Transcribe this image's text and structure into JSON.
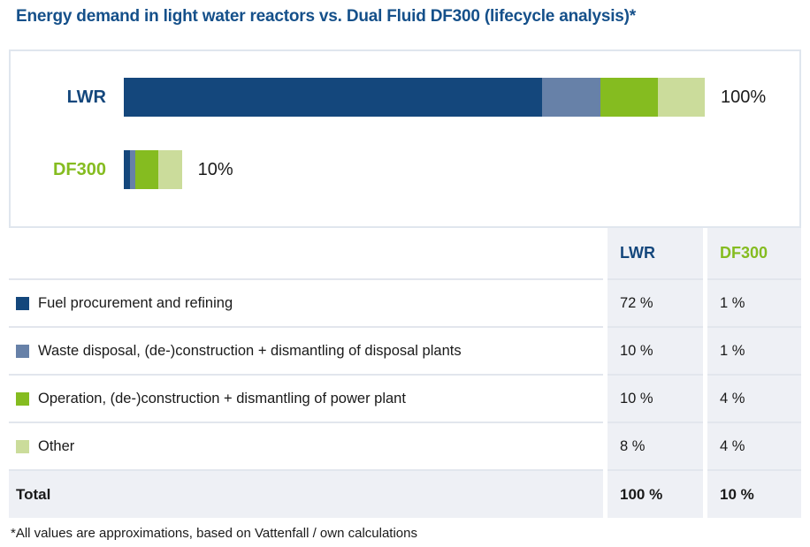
{
  "page_title": "Energy demand in light water reactors vs. Dual Fluid DF300 (lifecycle analysis)*",
  "footnote": "*All values are approximations, based on Vattenfall / own calculations",
  "colors": {
    "title": "#15508A",
    "navy": "#14477C",
    "slate": "#6781A8",
    "green": "#85BC20",
    "lightgreen": "#CBDC9B",
    "table_cell_bg": "#EEF0F5",
    "row_separator": "#E2E6ED",
    "panel_border": "#E0E6EE",
    "text": "#1A1A1A"
  },
  "chart_data": {
    "type": "bar",
    "orientation": "horizontal",
    "stacked": true,
    "title": "Energy demand in light water reactors vs. Dual Fluid DF300 (lifecycle analysis)*",
    "categories": [
      "LWR",
      "DF300"
    ],
    "series": [
      {
        "name": "Fuel procurement and refining",
        "color": "#14477C",
        "values": [
          72,
          1
        ]
      },
      {
        "name": "Waste disposal, (de-)construction + dismantling of disposal plants",
        "color": "#6781A8",
        "values": [
          10,
          1
        ]
      },
      {
        "name": "Operation, (de-)construction + dismantling of power plant",
        "color": "#85BC20",
        "values": [
          10,
          4
        ]
      },
      {
        "name": "Other",
        "color": "#CBDC9B",
        "values": [
          8,
          4
        ]
      }
    ],
    "bar_totals": [
      {
        "category": "LWR",
        "value": 100,
        "label": "100%"
      },
      {
        "category": "DF300",
        "value": 10,
        "label": "10%"
      }
    ],
    "xlim": [
      0,
      100
    ],
    "grid": false,
    "legend_position": "table-below"
  },
  "chart": {
    "bars": [
      {
        "label": "LWR",
        "total_label": "100%"
      },
      {
        "label": "DF300",
        "total_label": "10%"
      }
    ]
  },
  "table": {
    "columns": [
      "LWR",
      "DF300"
    ],
    "rows": [
      {
        "swatch": "#14477C",
        "label": "Fuel procurement and refining",
        "lwr": "72 %",
        "df300": "1 %"
      },
      {
        "swatch": "#6781A8",
        "label": "Waste disposal, (de-)construction + dismantling of disposal plants",
        "lwr": "10 %",
        "df300": "1 %"
      },
      {
        "swatch": "#85BC20",
        "label": "Operation, (de-)construction + dismantling of power plant",
        "lwr": "10 %",
        "df300": "4 %"
      },
      {
        "swatch": "#CBDC9B",
        "label": "Other",
        "lwr": "8 %",
        "df300": "4 %"
      }
    ],
    "total": {
      "label": "Total",
      "lwr": "100 %",
      "df300": "10 %"
    }
  }
}
